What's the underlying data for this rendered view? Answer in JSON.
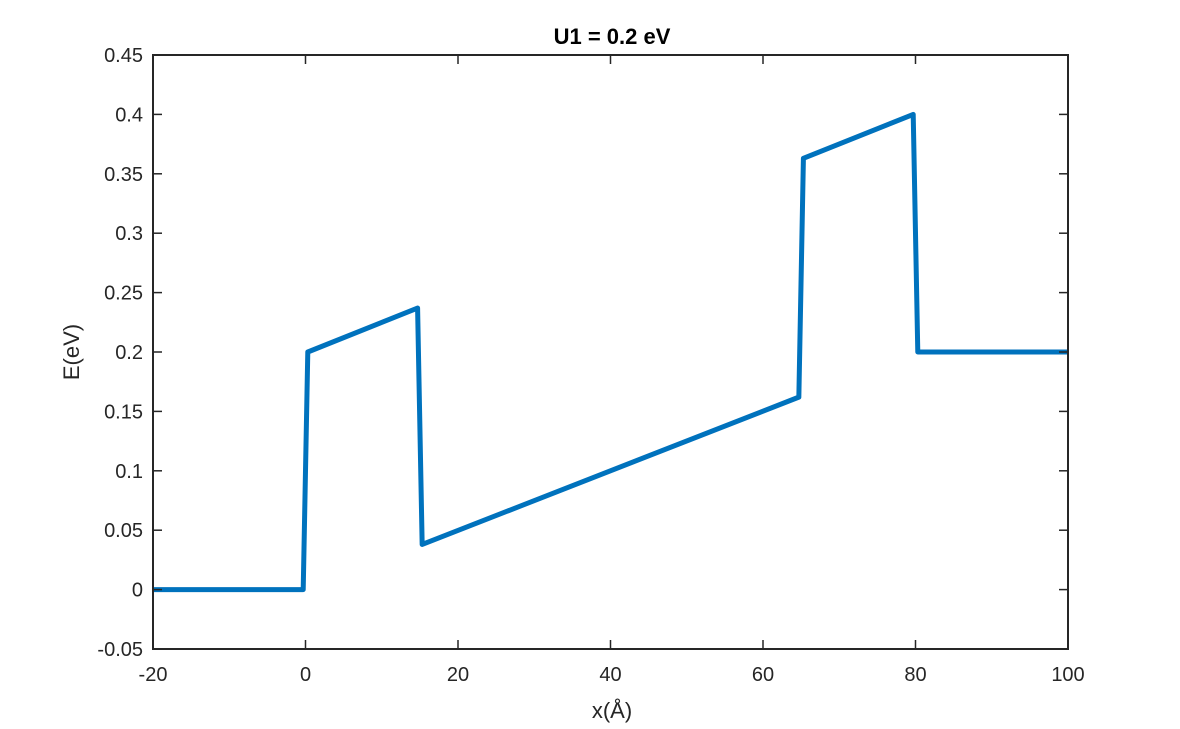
{
  "chart_data": {
    "type": "line",
    "title": "U1 = 0.2 eV",
    "xlabel": "x(Å)",
    "ylabel": "E(eV)",
    "xlim": [
      -20,
      100
    ],
    "ylim": [
      -0.05,
      0.45
    ],
    "xticks": [
      "-20",
      "0",
      "20",
      "40",
      "60",
      "80",
      "100"
    ],
    "yticks": [
      "-0.05",
      "0",
      "0.05",
      "0.1",
      "0.15",
      "0.2",
      "0.25",
      "0.3",
      "0.35",
      "0.4",
      "0.45"
    ],
    "grid": false,
    "legend": "none",
    "series": [
      {
        "color": "#0072BD",
        "x": [
          -20,
          -0.3,
          0.3,
          14.7,
          15.3,
          64.7,
          65.3,
          79.7,
          80.3,
          100
        ],
        "y": [
          0,
          0,
          0.2,
          0.237,
          0.038,
          0.162,
          0.363,
          0.4,
          0.2,
          0.2
        ]
      }
    ]
  }
}
